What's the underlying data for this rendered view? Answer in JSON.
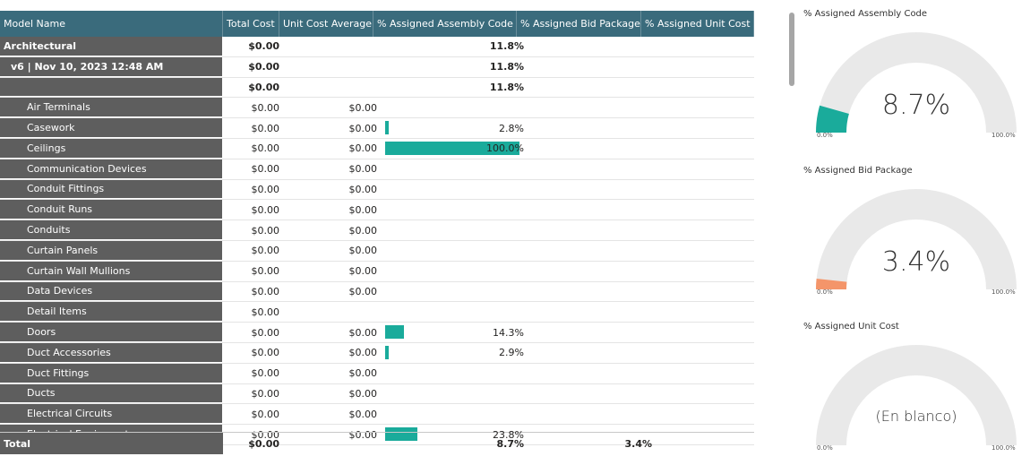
{
  "table": {
    "headers": [
      "Model Name",
      "Total Cost",
      "Unit Cost Average",
      "% Assigned Assembly Code",
      "% Assigned Bid Package",
      "% Assigned Unit Cost"
    ],
    "group_rows": [
      {
        "name": "Architectural",
        "total": "$0.00",
        "unit": "",
        "assembly": "11.8%",
        "bid": "",
        "unitcost": ""
      },
      {
        "name": "v6 | Nov 10, 2023 12:48 AM",
        "total": "$0.00",
        "unit": "",
        "assembly": "11.8%",
        "bid": "",
        "unitcost": ""
      },
      {
        "name": "",
        "total": "$0.00",
        "unit": "",
        "assembly": "11.8%",
        "bid": "",
        "unitcost": ""
      }
    ],
    "rows": [
      {
        "name": "Air Terminals",
        "total": "$0.00",
        "unit": "$0.00",
        "assembly": "",
        "pct": 0
      },
      {
        "name": "Casework",
        "total": "$0.00",
        "unit": "$0.00",
        "assembly": "2.8%",
        "pct": 2.8
      },
      {
        "name": "Ceilings",
        "total": "$0.00",
        "unit": "$0.00",
        "assembly": "100.0%",
        "pct": 100
      },
      {
        "name": "Communication Devices",
        "total": "$0.00",
        "unit": "$0.00",
        "assembly": "",
        "pct": 0
      },
      {
        "name": "Conduit Fittings",
        "total": "$0.00",
        "unit": "$0.00",
        "assembly": "",
        "pct": 0
      },
      {
        "name": "Conduit Runs",
        "total": "$0.00",
        "unit": "$0.00",
        "assembly": "",
        "pct": 0
      },
      {
        "name": "Conduits",
        "total": "$0.00",
        "unit": "$0.00",
        "assembly": "",
        "pct": 0
      },
      {
        "name": "Curtain Panels",
        "total": "$0.00",
        "unit": "$0.00",
        "assembly": "",
        "pct": 0
      },
      {
        "name": "Curtain Wall Mullions",
        "total": "$0.00",
        "unit": "$0.00",
        "assembly": "",
        "pct": 0
      },
      {
        "name": "Data Devices",
        "total": "$0.00",
        "unit": "$0.00",
        "assembly": "",
        "pct": 0
      },
      {
        "name": "Detail Items",
        "total": "$0.00",
        "unit": "",
        "assembly": "",
        "pct": 0
      },
      {
        "name": "Doors",
        "total": "$0.00",
        "unit": "$0.00",
        "assembly": "14.3%",
        "pct": 14.3
      },
      {
        "name": "Duct Accessories",
        "total": "$0.00",
        "unit": "$0.00",
        "assembly": "2.9%",
        "pct": 2.9
      },
      {
        "name": "Duct Fittings",
        "total": "$0.00",
        "unit": "$0.00",
        "assembly": "",
        "pct": 0
      },
      {
        "name": "Ducts",
        "total": "$0.00",
        "unit": "$0.00",
        "assembly": "",
        "pct": 0
      },
      {
        "name": "Electrical Circuits",
        "total": "$0.00",
        "unit": "$0.00",
        "assembly": "",
        "pct": 0
      },
      {
        "name": "Electrical Equipment",
        "total": "$0.00",
        "unit": "$0.00",
        "assembly": "23.8%",
        "pct": 23.8
      }
    ],
    "total": {
      "label": "Total",
      "total": "$0.00",
      "assembly": "8.7%",
      "bid": "3.4%"
    }
  },
  "colors": {
    "header_bg": "#3a6b7c",
    "name_bg": "#5e5e5e",
    "bar": "#1aab9b",
    "gauge_track": "#e9e9e9",
    "gauge_bid": "#f4956a",
    "gauge_assembly": "#1aab9b"
  },
  "gauges": [
    {
      "title": "% Assigned Assembly Code",
      "value_text": "8.7%",
      "value": 8.7,
      "min_label": "0.0%",
      "max_label": "100.0%",
      "color": "#1aab9b"
    },
    {
      "title": "% Assigned Bid Package",
      "value_text": "3.4%",
      "value": 3.4,
      "min_label": "0.0%",
      "max_label": "100.0%",
      "color": "#f4956a"
    },
    {
      "title": "% Assigned Unit Cost",
      "value_text": "(En blanco)",
      "value": 0,
      "min_label": "0.0%",
      "max_label": "100.0%",
      "color": "#1aab9b"
    }
  ]
}
